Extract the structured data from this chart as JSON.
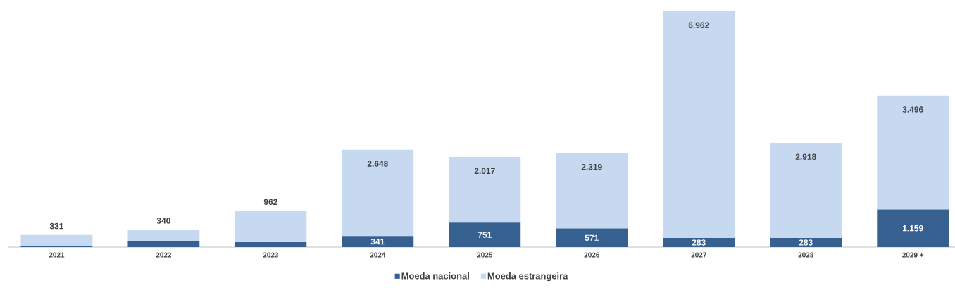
{
  "chart_data": {
    "type": "bar",
    "stacked": true,
    "categories": [
      "2021",
      "2022",
      "2023",
      "2024",
      "2025",
      "2026",
      "2027",
      "2028",
      "2029 +"
    ],
    "series": [
      {
        "name": "Moeda nacional",
        "color": "#35608f",
        "values": [
          40,
          195,
          150,
          341,
          751,
          571,
          283,
          283,
          1159
        ],
        "value_labels": [
          null,
          null,
          null,
          "341",
          "751",
          "571",
          "283",
          "283",
          "1.159"
        ]
      },
      {
        "name": "Moeda estrangeira",
        "color": "#c6d9f0",
        "values": [
          331,
          340,
          962,
          2648,
          2017,
          2319,
          6962,
          2918,
          3496
        ],
        "value_labels": [
          "331",
          "340",
          "962",
          "2.648",
          "2.017",
          "2.319",
          "6.962",
          "2.918",
          "3.496"
        ]
      }
    ],
    "legend": "bottom"
  }
}
